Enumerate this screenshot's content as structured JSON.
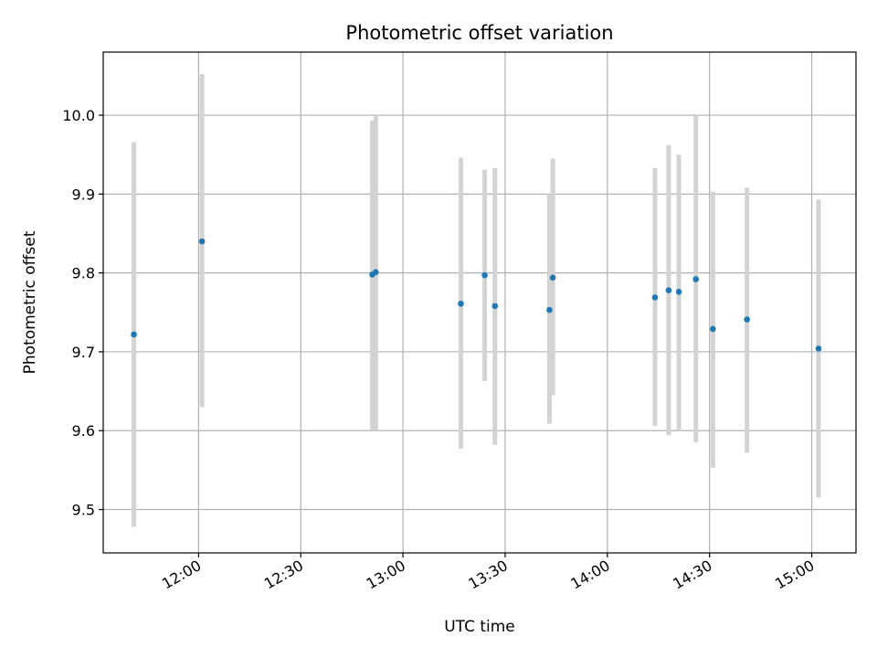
{
  "chart_data": {
    "type": "scatter",
    "title": "Photometric offset variation",
    "xlabel": "UTC time",
    "ylabel": "Photometric offset",
    "grid": true,
    "xlim": [
      "11:32",
      "15:13"
    ],
    "ylim": [
      9.445,
      10.08
    ],
    "x_ticks": [
      "12:00",
      "12:30",
      "13:00",
      "13:30",
      "14:00",
      "14:30",
      "15:00"
    ],
    "y_ticks": [
      "9.5",
      "9.6",
      "9.7",
      "9.8",
      "9.9",
      "10.0"
    ],
    "colors": {
      "point": "#1f77b4",
      "errorbar": "#d3d3d3",
      "grid": "#b0b0b0"
    },
    "series": [
      {
        "points": [
          {
            "x": "11:41",
            "y": 9.722,
            "ylow": 9.478,
            "yhigh": 9.966
          },
          {
            "x": "12:01",
            "y": 9.84,
            "ylow": 9.63,
            "yhigh": 10.052
          },
          {
            "x": "12:51",
            "y": 9.798,
            "ylow": 9.6,
            "yhigh": 9.993
          },
          {
            "x": "12:52",
            "y": 9.801,
            "ylow": 9.6,
            "yhigh": 10.0
          },
          {
            "x": "13:17",
            "y": 9.761,
            "ylow": 9.577,
            "yhigh": 9.946
          },
          {
            "x": "13:24",
            "y": 9.797,
            "ylow": 9.663,
            "yhigh": 9.931
          },
          {
            "x": "13:27",
            "y": 9.758,
            "ylow": 9.582,
            "yhigh": 9.933
          },
          {
            "x": "13:43",
            "y": 9.753,
            "ylow": 9.609,
            "yhigh": 9.9
          },
          {
            "x": "13:44",
            "y": 9.794,
            "ylow": 9.645,
            "yhigh": 9.945
          },
          {
            "x": "14:14",
            "y": 9.769,
            "ylow": 9.606,
            "yhigh": 9.933
          },
          {
            "x": "14:18",
            "y": 9.778,
            "ylow": 9.594,
            "yhigh": 9.962
          },
          {
            "x": "14:21",
            "y": 9.776,
            "ylow": 9.6,
            "yhigh": 9.95
          },
          {
            "x": "14:26",
            "y": 9.792,
            "ylow": 9.585,
            "yhigh": 9.999
          },
          {
            "x": "14:31",
            "y": 9.729,
            "ylow": 9.553,
            "yhigh": 9.903
          },
          {
            "x": "14:41",
            "y": 9.741,
            "ylow": 9.572,
            "yhigh": 9.908
          },
          {
            "x": "15:02",
            "y": 9.704,
            "ylow": 9.515,
            "yhigh": 9.893
          }
        ]
      }
    ]
  }
}
